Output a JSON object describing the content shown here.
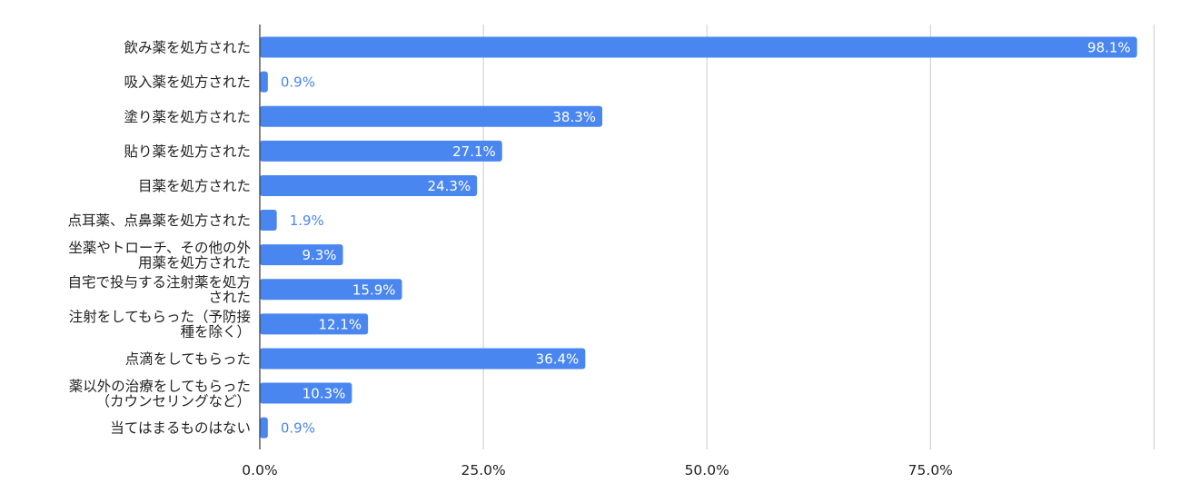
{
  "chart_data": {
    "type": "bar",
    "orientation": "horizontal",
    "categories": [
      [
        "飲み薬を処方された"
      ],
      [
        "吸入薬を処方された"
      ],
      [
        "塗り薬を処方された"
      ],
      [
        "貼り薬を処方された"
      ],
      [
        "目薬を処方された"
      ],
      [
        "点耳薬、点鼻薬を処方された"
      ],
      [
        "坐薬やトローチ、その他の外",
        "用薬を処方された"
      ],
      [
        "自宅で投与する注射薬を処方",
        "された"
      ],
      [
        "注射をしてもらった（予防接",
        "種を除く）"
      ],
      [
        "点滴をしてもらった"
      ],
      [
        "薬以外の治療をしてもらった",
        "（カウンセリングなど）"
      ],
      [
        "当てはまるものはない"
      ]
    ],
    "values": [
      98.1,
      0.9,
      38.3,
      27.1,
      24.3,
      1.9,
      9.3,
      15.9,
      12.1,
      36.4,
      10.3,
      0.9
    ],
    "value_labels": [
      "98.1%",
      "0.9%",
      "38.3%",
      "27.1%",
      "24.3%",
      "1.9%",
      "9.3%",
      "15.9%",
      "12.1%",
      "36.4%",
      "10.3%",
      "0.9%"
    ],
    "xticks": [
      0,
      25,
      50,
      75
    ],
    "xtick_labels": [
      "0.0%",
      "25.0%",
      "50.0%",
      "75.0%"
    ],
    "xlim": [
      0,
      100
    ],
    "grid": true,
    "colors": {
      "bar": "#4a86f0",
      "label_outside": "#4a86f0",
      "label_inside": "#ffffff",
      "grid": "#cccccc",
      "axis": "#333333"
    }
  }
}
